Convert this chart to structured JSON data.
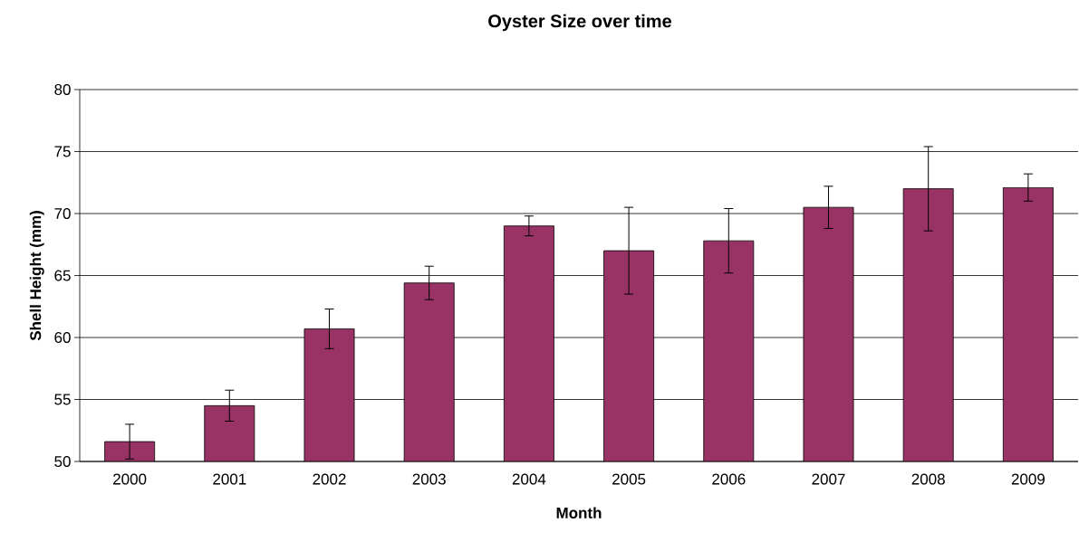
{
  "chart_data": {
    "type": "bar",
    "title": "Oyster Size over time",
    "xlabel": "Month",
    "ylabel": "Shell Height (mm)",
    "categories": [
      "2000",
      "2001",
      "2002",
      "2003",
      "2004",
      "2005",
      "2006",
      "2007",
      "2008",
      "2009"
    ],
    "values": [
      51.6,
      54.5,
      60.7,
      64.4,
      69.0,
      67.0,
      67.8,
      70.5,
      72.0,
      72.1
    ],
    "errors": [
      1.4,
      1.25,
      1.6,
      1.35,
      0.8,
      3.5,
      2.6,
      1.7,
      3.4,
      1.1
    ],
    "color": "#993366",
    "ylim": [
      50,
      80
    ],
    "yticks": [
      50,
      55,
      60,
      65,
      70,
      75,
      80
    ],
    "grid": "y"
  }
}
